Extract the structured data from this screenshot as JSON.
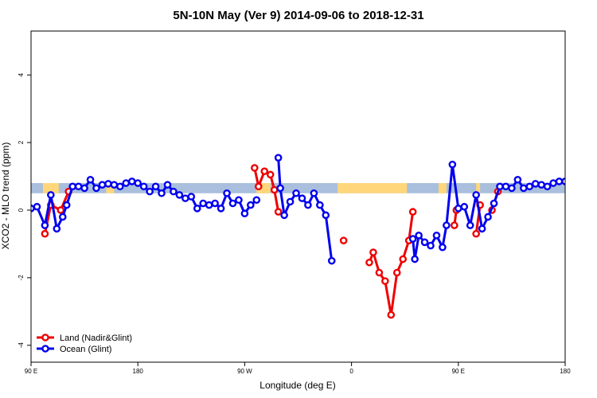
{
  "chart_data": {
    "type": "line",
    "title": "5N-10N May (Ver 9)   2014-09-06 to 2018-12-31",
    "xlabel": "Longitude (deg E)",
    "ylabel": "XCO2 - MLO trend (ppm)",
    "xlim": [
      -90,
      180
    ],
    "ylim": [
      -4.5,
      5.3
    ],
    "x_ticks": [
      {
        "value": -90,
        "label": "90 E"
      },
      {
        "value": -36,
        "label": "180"
      },
      {
        "value": 18,
        "label": "90 W"
      },
      {
        "value": 72,
        "label": "0"
      },
      {
        "value": 126,
        "label": "90 E"
      },
      {
        "value": 180,
        "label": "180"
      }
    ],
    "y_ticks": [
      -4,
      -2,
      0,
      2,
      4
    ],
    "grid": false,
    "legend_position": "bottom-left",
    "land_ocean_band": {
      "y_range": [
        0.5,
        0.8
      ],
      "ocean_color": "#a9bfdd",
      "land_color": "#ffd77a",
      "land_spans": [
        [
          -84,
          -76
        ],
        [
          -52,
          -48
        ],
        [
          24,
          31
        ],
        [
          65,
          100
        ],
        [
          116,
          120
        ],
        [
          135,
          137
        ]
      ]
    },
    "series": [
      {
        "name": "Land (Nadir&Glint)",
        "color": "#ee0000",
        "segments": [
          [
            [
              -83,
              -0.7
            ],
            [
              -80,
              0.15
            ],
            [
              -75,
              0.0
            ],
            [
              -71,
              0.55
            ]
          ],
          [
            [
              23,
              1.25
            ],
            [
              25,
              0.7
            ],
            [
              28,
              1.15
            ],
            [
              31,
              1.05
            ],
            [
              33,
              0.6
            ],
            [
              35,
              -0.05
            ]
          ],
          [
            [
              68,
              -0.9
            ]
          ],
          [
            [
              81,
              -1.55
            ],
            [
              83,
              -1.25
            ],
            [
              86,
              -1.85
            ],
            [
              89,
              -2.1
            ],
            [
              92,
              -3.1
            ],
            [
              95,
              -1.85
            ],
            [
              98,
              -1.45
            ],
            [
              101,
              -0.9
            ],
            [
              103,
              -0.05
            ]
          ],
          [
            [
              124,
              -0.45
            ],
            [
              125,
              0.0
            ]
          ],
          [
            [
              135,
              -0.7
            ],
            [
              137,
              0.15
            ]
          ],
          [
            [
              143,
              0.0
            ],
            [
              146,
              0.55
            ]
          ]
        ]
      },
      {
        "name": "Ocean (Glint)",
        "color": "#0000ee",
        "segments": [
          [
            [
              -90,
              0.05
            ],
            [
              -87,
              0.1
            ],
            [
              -83,
              -0.45
            ],
            [
              -80,
              0.45
            ],
            [
              -77,
              -0.55
            ],
            [
              -74,
              -0.2
            ],
            [
              -72,
              0.15
            ],
            [
              -69,
              0.7
            ],
            [
              -66,
              0.7
            ],
            [
              -63,
              0.65
            ],
            [
              -60,
              0.9
            ],
            [
              -57,
              0.65
            ],
            [
              -54,
              0.75
            ],
            [
              -51,
              0.78
            ],
            [
              -48,
              0.75
            ],
            [
              -45,
              0.7
            ],
            [
              -42,
              0.8
            ],
            [
              -39,
              0.85
            ],
            [
              -36,
              0.8
            ],
            [
              -33,
              0.7
            ],
            [
              -30,
              0.55
            ],
            [
              -27,
              0.7
            ],
            [
              -24,
              0.5
            ],
            [
              -21,
              0.75
            ],
            [
              -18,
              0.55
            ],
            [
              -15,
              0.45
            ],
            [
              -12,
              0.35
            ],
            [
              -9,
              0.4
            ],
            [
              -6,
              0.05
            ],
            [
              -3,
              0.2
            ],
            [
              0,
              0.15
            ],
            [
              3,
              0.2
            ],
            [
              6,
              0.05
            ],
            [
              9,
              0.5
            ],
            [
              12,
              0.2
            ],
            [
              15,
              0.3
            ],
            [
              18,
              -0.1
            ],
            [
              21,
              0.15
            ],
            [
              24,
              0.3
            ]
          ],
          [
            [
              35,
              1.55
            ],
            [
              36,
              0.65
            ],
            [
              38,
              -0.15
            ],
            [
              41,
              0.25
            ],
            [
              44,
              0.5
            ],
            [
              47,
              0.35
            ],
            [
              50,
              0.15
            ],
            [
              53,
              0.5
            ],
            [
              56,
              0.15
            ],
            [
              59,
              -0.15
            ],
            [
              62,
              -1.5
            ]
          ],
          [
            [
              103,
              -0.85
            ],
            [
              104,
              -1.45
            ],
            [
              106,
              -0.75
            ],
            [
              109,
              -0.95
            ],
            [
              112,
              -1.05
            ],
            [
              115,
              -0.75
            ],
            [
              118,
              -1.1
            ],
            [
              120,
              -0.45
            ],
            [
              123,
              1.35
            ],
            [
              126,
              0.05
            ],
            [
              129,
              0.1
            ],
            [
              132,
              -0.45
            ],
            [
              135,
              0.45
            ],
            [
              138,
              -0.55
            ],
            [
              141,
              -0.2
            ],
            [
              144,
              0.2
            ],
            [
              147,
              0.7
            ],
            [
              150,
              0.7
            ],
            [
              153,
              0.65
            ],
            [
              156,
              0.9
            ],
            [
              159,
              0.65
            ],
            [
              162,
              0.7
            ],
            [
              165,
              0.78
            ],
            [
              168,
              0.75
            ],
            [
              171,
              0.7
            ],
            [
              174,
              0.8
            ],
            [
              177,
              0.85
            ],
            [
              180,
              0.85
            ]
          ]
        ]
      }
    ]
  }
}
